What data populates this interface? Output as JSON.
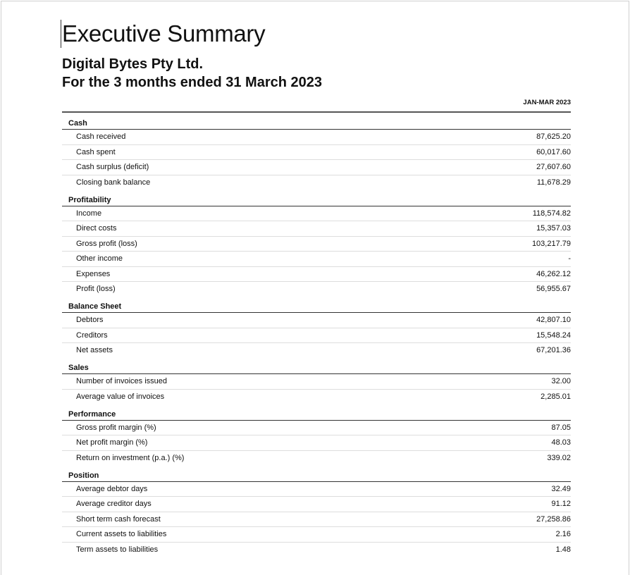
{
  "title": "Executive Summary",
  "company": "Digital Bytes Pty Ltd.",
  "period": "For the 3 months ended 31 March 2023",
  "column_header": "JAN-MAR 2023",
  "sections": [
    {
      "name": "Cash",
      "rows": [
        {
          "label": "Cash received",
          "value": "87,625.20"
        },
        {
          "label": "Cash spent",
          "value": "60,017.60"
        },
        {
          "label": "Cash surplus (deficit)",
          "value": "27,607.60"
        },
        {
          "label": "Closing bank balance",
          "value": "11,678.29"
        }
      ]
    },
    {
      "name": "Profitability",
      "rows": [
        {
          "label": "Income",
          "value": "118,574.82"
        },
        {
          "label": "Direct costs",
          "value": "15,357.03"
        },
        {
          "label": "Gross profit (loss)",
          "value": "103,217.79"
        },
        {
          "label": "Other income",
          "value": "-"
        },
        {
          "label": "Expenses",
          "value": "46,262.12"
        },
        {
          "label": "Profit (loss)",
          "value": "56,955.67"
        }
      ]
    },
    {
      "name": "Balance Sheet",
      "rows": [
        {
          "label": "Debtors",
          "value": "42,807.10"
        },
        {
          "label": "Creditors",
          "value": "15,548.24"
        },
        {
          "label": "Net assets",
          "value": "67,201.36"
        }
      ]
    },
    {
      "name": "Sales",
      "rows": [
        {
          "label": "Number of invoices issued",
          "value": "32.00"
        },
        {
          "label": "Average value of invoices",
          "value": "2,285.01"
        }
      ]
    },
    {
      "name": "Performance",
      "rows": [
        {
          "label": "Gross profit margin (%)",
          "value": "87.05"
        },
        {
          "label": "Net profit margin (%)",
          "value": "48.03"
        },
        {
          "label": "Return on investment (p.a.) (%)",
          "value": "339.02"
        }
      ]
    },
    {
      "name": "Position",
      "rows": [
        {
          "label": "Average debtor days",
          "value": "32.49"
        },
        {
          "label": "Average creditor days",
          "value": "91.12"
        },
        {
          "label": "Short term cash forecast",
          "value": "27,258.86"
        },
        {
          "label": "Current assets to liabilities",
          "value": "2.16"
        },
        {
          "label": "Term assets to liabilities",
          "value": "1.48"
        }
      ]
    }
  ]
}
